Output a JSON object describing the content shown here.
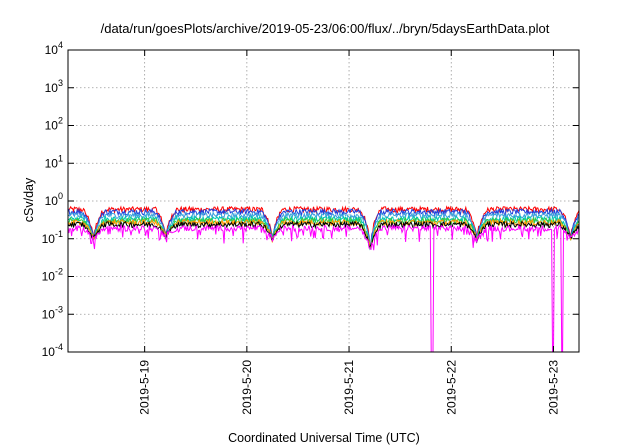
{
  "chart_data": {
    "type": "line",
    "title": "/data/run/goesPlots/archive/2019-05-23/06:00/flux/../bryn/5daysEarthData.plot",
    "xlabel": "Coordinated Universal Time (UTC)",
    "ylabel": "cSv/day",
    "yscale": "log",
    "ylim": [
      0.0001,
      10000
    ],
    "y_ticks": [
      {
        "value": 0.0001,
        "mant": "10",
        "exp": "-4"
      },
      {
        "value": 0.001,
        "mant": "10",
        "exp": "-3"
      },
      {
        "value": 0.01,
        "mant": "10",
        "exp": "-2"
      },
      {
        "value": 0.1,
        "mant": "10",
        "exp": "-1"
      },
      {
        "value": 1,
        "mant": "10",
        "exp": "0"
      },
      {
        "value": 10,
        "mant": "10",
        "exp": "1"
      },
      {
        "value": 100,
        "mant": "10",
        "exp": "2"
      },
      {
        "value": 1000,
        "mant": "10",
        "exp": "3"
      },
      {
        "value": 10000,
        "mant": "10",
        "exp": "4"
      }
    ],
    "xlim": [
      "2019-05-18 06:00",
      "2019-05-23 06:00"
    ],
    "x_ticks": [
      "2019-5-19",
      "2019-5-20",
      "2019-5-21",
      "2019-5-22",
      "2019-5-23"
    ],
    "grid": true,
    "series": [
      {
        "color": "#ff0000",
        "level": 0.6
      },
      {
        "color": "#1f3fdc",
        "level": 0.52
      },
      {
        "color": "#3aa0dc",
        "level": 0.42
      },
      {
        "color": "#00c8b4",
        "level": 0.33
      },
      {
        "color": "#2ecc40",
        "level": 0.3
      },
      {
        "color": "#ff9900",
        "level": 0.27
      },
      {
        "color": "#000000",
        "level": 0.24
      },
      {
        "color": "#ff00ff",
        "level": 0.19
      }
    ],
    "dips": [
      {
        "date": "2019-05-18 12:00",
        "min": 0.1
      },
      {
        "date": "2019-05-19 05:00",
        "min": 0.12
      },
      {
        "date": "2019-05-20 06:00",
        "min": 0.1
      },
      {
        "date": "2019-05-21 05:00",
        "min": 0.05
      },
      {
        "date": "2019-05-22 06:00",
        "min": 0.1
      },
      {
        "date": "2019-05-23 04:00",
        "min": 0.1
      }
    ],
    "dropouts": [
      {
        "date": "2019-05-21 19:30",
        "to": 0.0001
      },
      {
        "date": "2019-05-22 23:50",
        "to": 0.0001
      },
      {
        "date": "2019-05-23 02:00",
        "to": 0.0001
      }
    ]
  }
}
